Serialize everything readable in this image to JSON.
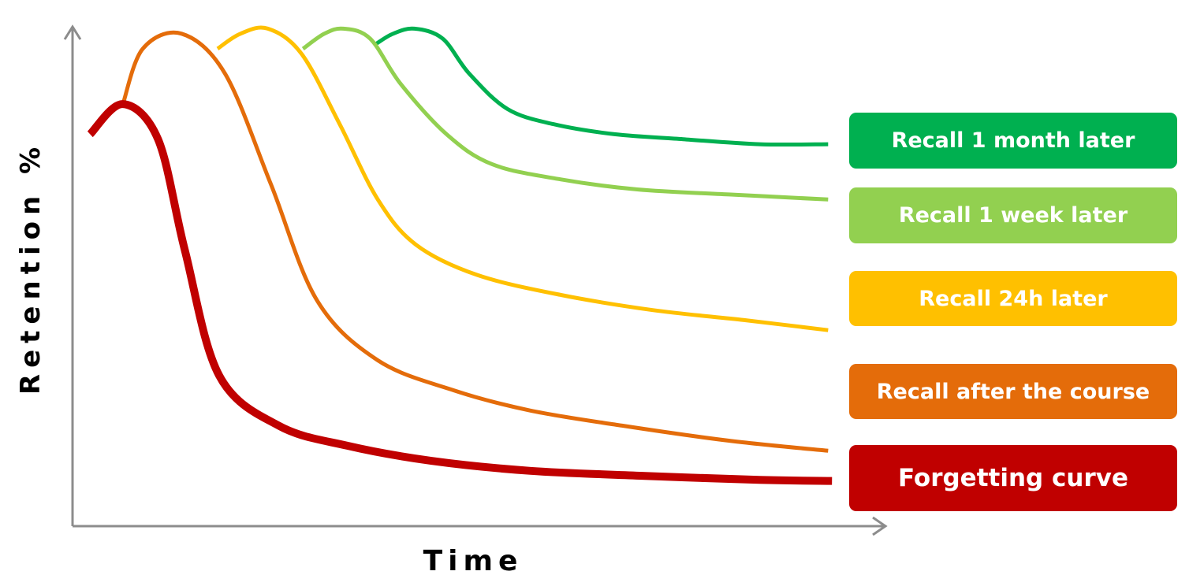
{
  "chart_data": {
    "type": "line",
    "title": "",
    "xlabel": "Time",
    "ylabel": "Retention %",
    "x_ticks": [],
    "y_ticks": [],
    "xlim": [
      0,
      1
    ],
    "ylim": [
      0,
      1
    ],
    "grid": false,
    "legend": "right, at the end of each curve",
    "series": [
      {
        "name": "Forgetting curve",
        "color": "#c00000",
        "x": [
          0.023,
          0.066,
          0.112,
          0.147,
          0.192,
          0.27,
          0.36,
          0.47,
          0.6,
          0.75,
          0.9,
          0.995
        ],
        "y": [
          0.78,
          0.84,
          0.77,
          0.55,
          0.3,
          0.2,
          0.16,
          0.13,
          0.11,
          0.1,
          0.092,
          0.09
        ]
      },
      {
        "name": "Recall after the course",
        "color": "#e46c0a",
        "x": [
          0.066,
          0.092,
          0.143,
          0.2,
          0.26,
          0.32,
          0.4,
          0.5,
          0.6,
          0.72,
          0.86,
          0.99
        ],
        "y": [
          0.84,
          0.95,
          0.98,
          0.9,
          0.68,
          0.45,
          0.33,
          0.27,
          0.23,
          0.2,
          0.17,
          0.15
        ]
      },
      {
        "name": "Recall 24h later",
        "color": "#ffc000",
        "x": [
          0.19,
          0.22,
          0.256,
          0.3,
          0.35,
          0.4,
          0.45,
          0.53,
          0.64,
          0.76,
          0.88,
          0.99
        ],
        "y": [
          0.95,
          0.98,
          0.99,
          0.94,
          0.8,
          0.65,
          0.56,
          0.5,
          0.46,
          0.43,
          0.41,
          0.39
        ]
      },
      {
        "name": "Recall 1 week later",
        "color": "#92d050",
        "x": [
          0.302,
          0.33,
          0.355,
          0.39,
          0.43,
          0.49,
          0.55,
          0.64,
          0.74,
          0.86,
          0.99
        ],
        "y": [
          0.95,
          0.98,
          0.99,
          0.97,
          0.88,
          0.78,
          0.72,
          0.69,
          0.67,
          0.66,
          0.65
        ]
      },
      {
        "name": "Recall 1 month later",
        "color": "#00b050",
        "x": [
          0.398,
          0.42,
          0.448,
          0.485,
          0.52,
          0.57,
          0.63,
          0.71,
          0.8,
          0.9,
          0.99
        ],
        "y": [
          0.96,
          0.98,
          0.99,
          0.97,
          0.9,
          0.83,
          0.8,
          0.78,
          0.77,
          0.76,
          0.76
        ]
      }
    ]
  },
  "legend": [
    {
      "label": "Recall 1 month later",
      "color": "#00b050"
    },
    {
      "label": "Recall 1 week later",
      "color": "#92d050"
    },
    {
      "label": "Recall 24h later",
      "color": "#ffc000"
    },
    {
      "label": "Recall after the course",
      "color": "#e46c0a"
    },
    {
      "label": "Forgetting curve",
      "color": "#c00000"
    }
  ]
}
